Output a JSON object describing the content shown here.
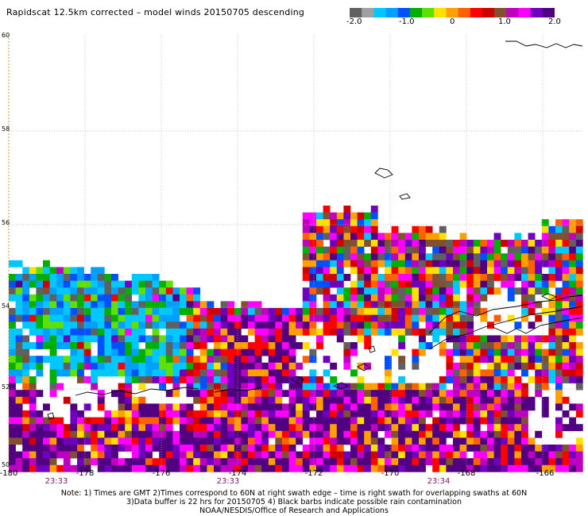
{
  "title": "Rapidscat 12.5km corrected – model winds 20150705 descending",
  "colorbar": {
    "tick_labels": [
      "-2.0",
      "-1.0",
      "0",
      "1.0",
      "2.0"
    ],
    "range": [
      -2.0,
      2.0
    ],
    "colors": [
      "#606060",
      "#a0a0a0",
      "#00c8ff",
      "#00a0ff",
      "#0050ff",
      "#00b000",
      "#60e000",
      "#ffe000",
      "#ffa000",
      "#ff6000",
      "#ff0000",
      "#d00000",
      "#805030",
      "#c000c0",
      "#ff00ff",
      "#7000c0",
      "#500080"
    ]
  },
  "map": {
    "lat_labels": [
      "60",
      "58",
      "56",
      "54",
      "52",
      "50"
    ],
    "lon_labels": [
      "-180",
      "-178",
      "-176",
      "-174",
      "-172",
      "-170",
      "-168",
      "-166"
    ],
    "lat_range": [
      50,
      60
    ],
    "lon_range": [
      -180,
      -165.3
    ],
    "time_labels": [
      "23:33",
      "23:33",
      "23:34"
    ],
    "time_label_lon": [
      -178.6,
      -174.2,
      -168.6
    ]
  },
  "notes": [
    "Note: 1) Times are GMT 2)Times correspond to 60N at right swath edge – time is right swath for overlapping swaths at 60N",
    "3)Data buffer is 22 hrs for 20150705 4) Black barbs indicate possible rain contamination",
    "NOAA/NESDIS/Office of Research and Applications"
  ]
}
